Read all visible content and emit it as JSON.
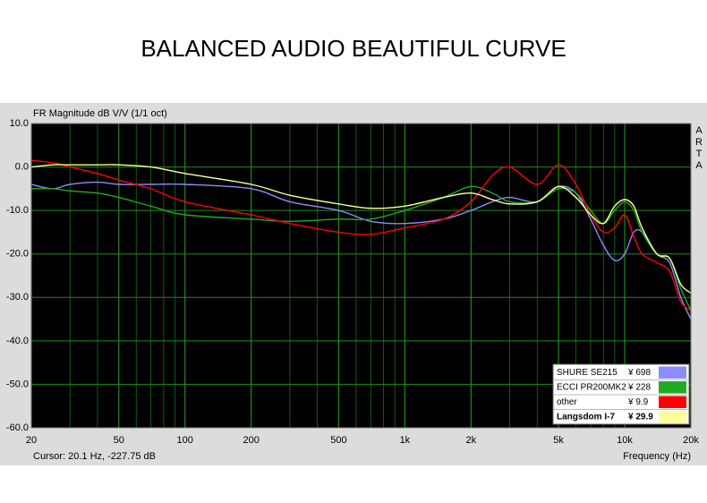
{
  "chart_data": {
    "type": "line",
    "title": "BALANCED AUDIO BEAUTIFUL CURVE",
    "subtitle": "FR Magnitude dB V/V (1/1 oct)",
    "watermark": "ARTA",
    "cursor_text": "Cursor: 20.1 Hz, -227.75 dB",
    "x_label": "Frequency (Hz)",
    "x_log": true,
    "grid": true,
    "grid_color": "#1e8c1e",
    "background": "#000000",
    "legend": "lower right",
    "x": [
      20,
      25,
      30,
      40,
      50,
      70,
      100,
      200,
      300,
      500,
      700,
      1000,
      1500,
      2000,
      2500,
      3000,
      4000,
      5000,
      6000,
      7000,
      8000,
      9000,
      10000,
      11000,
      12000,
      14000,
      16000,
      18000,
      20000
    ],
    "series": [
      {
        "name": "SHURE SE215",
        "price": "¥ 698",
        "color": "#8c8cff",
        "values": [
          -4,
          -5,
          -4,
          -3.5,
          -4,
          -4,
          -4,
          -5,
          -8,
          -10,
          -12.5,
          -13,
          -12,
          -10,
          -8,
          -7,
          -8,
          -4.5,
          -6,
          -12,
          -18,
          -21.5,
          -20,
          -15,
          -15,
          -20,
          -22,
          -30,
          -35
        ]
      },
      {
        "name": "ECCI PR200MK2",
        "price": "¥ 228",
        "color": "#22aa22",
        "values": [
          -5,
          -5,
          -5.5,
          -6,
          -7,
          -9,
          -11,
          -12,
          -12.5,
          -12,
          -12,
          -10,
          -7,
          -4.5,
          -6,
          -8,
          -8,
          -5,
          -6,
          -10,
          -13,
          -10,
          -8,
          -10,
          -15,
          -20,
          -21,
          -28,
          -33
        ]
      },
      {
        "name": "other",
        "price": "¥ 9.9",
        "color": "#ff0000",
        "values": [
          1.5,
          1,
          0,
          -1.5,
          -3,
          -5,
          -8,
          -11,
          -13,
          -15,
          -15.5,
          -14,
          -12,
          -8,
          -2,
          0,
          -4,
          0.5,
          -4,
          -11,
          -15,
          -14,
          -11,
          -16,
          -20,
          -22,
          -24,
          -31,
          -33
        ]
      },
      {
        "name": "Langsdom I-7",
        "price": "¥ 29.9",
        "color": "#ffff99",
        "values": [
          0,
          0.5,
          0.5,
          0.5,
          0.5,
          0,
          -1.5,
          -4,
          -6.5,
          -8.5,
          -9.5,
          -9,
          -7,
          -6,
          -7.5,
          -8.5,
          -8,
          -4.5,
          -7,
          -11,
          -13,
          -9,
          -7.5,
          -9,
          -14,
          -20,
          -21,
          -27,
          -29
        ]
      }
    ],
    "xlim": [
      20,
      20000
    ],
    "xticks": [
      20,
      50,
      100,
      200,
      500,
      {
        "value": 1000,
        "label": "1k"
      },
      {
        "value": 2000,
        "label": "2k"
      },
      {
        "value": 5000,
        "label": "5k"
      },
      {
        "value": 10000,
        "label": "10k"
      },
      {
        "value": 20000,
        "label": "20k"
      }
    ],
    "xminorticks": [
      30,
      40,
      60,
      70,
      80,
      90,
      300,
      400,
      600,
      700,
      800,
      900,
      3000,
      4000,
      6000,
      7000,
      8000,
      9000
    ],
    "ylim": [
      -60,
      10
    ],
    "yticks": [
      {
        "value": 10,
        "label": "10.0"
      },
      {
        "value": 0,
        "label": "0.0"
      },
      {
        "value": -10,
        "label": "-10.0"
      },
      {
        "value": -20,
        "label": "-20.0"
      },
      {
        "value": -30,
        "label": "-30.0"
      },
      {
        "value": -40,
        "label": "-40.0"
      },
      {
        "value": -50,
        "label": "-50.0"
      },
      {
        "value": -60,
        "label": "-60.0"
      }
    ]
  }
}
